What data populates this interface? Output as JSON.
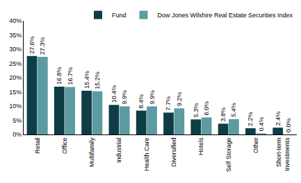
{
  "chart_data": {
    "type": "bar",
    "categories": [
      "Retail",
      "Office",
      "Multifamily",
      "Industrial",
      "Health Care",
      "Diversified",
      "Hotels",
      "Self Storage",
      "Other",
      "Short-term Investments"
    ],
    "series": [
      {
        "name": "Fund",
        "color": "#0e3d45",
        "values": [
          27.6,
          16.8,
          15.4,
          10.4,
          8.4,
          7.7,
          5.3,
          3.8,
          2.2,
          2.4
        ],
        "value_labels": [
          "27.6%",
          "16.8%",
          "15.4%",
          "10.4%",
          "8.4%",
          "7.7%",
          "5.3%",
          "3.8%",
          "2.2%",
          "2.4%"
        ]
      },
      {
        "name": "Dow Jones Wilshire Real Estate Securities Index",
        "color": "#5b9ba1",
        "values": [
          27.3,
          16.7,
          15.2,
          9.9,
          9.9,
          9.2,
          6.0,
          5.4,
          0.4,
          0.0
        ],
        "value_labels": [
          "27.3%",
          "16.7%",
          "15.2%",
          "9.9%",
          "9.9%",
          "9.2%",
          "6.0%",
          "5.4%",
          "0.4%",
          "0.0%"
        ]
      }
    ],
    "ylim": [
      0,
      40
    ],
    "yticks": [
      {
        "value": 0,
        "label": "0%"
      },
      {
        "value": 5,
        "label": "5%"
      },
      {
        "value": 10,
        "label": "10%"
      },
      {
        "value": 15,
        "label": "15%"
      },
      {
        "value": 20,
        "label": "20%"
      },
      {
        "value": 25,
        "label": "25%"
      },
      {
        "value": 30,
        "label": "30%"
      },
      {
        "value": 35,
        "label": "35%"
      },
      {
        "value": 40,
        "label": "40%"
      }
    ],
    "grid": false,
    "legend": "top right",
    "data_labels": true
  }
}
